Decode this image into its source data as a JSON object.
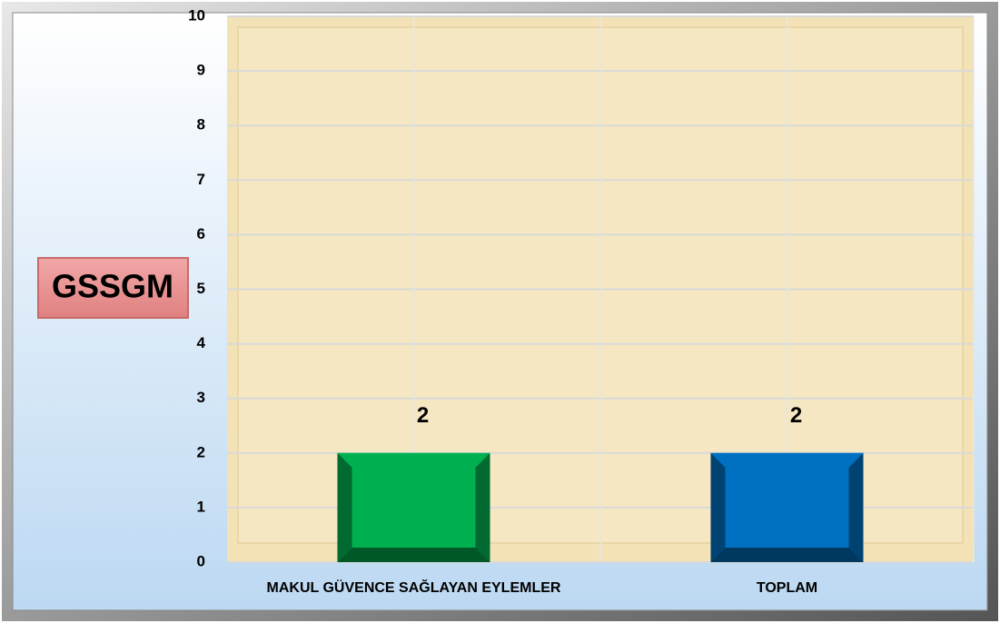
{
  "chart_data": {
    "type": "bar",
    "title": "GSSGM",
    "categories": [
      "MAKUL GÜVENCE SAĞLAYAN EYLEMLER",
      "TOPLAM"
    ],
    "values": [
      2,
      2
    ],
    "colors": [
      "#00b050",
      "#0070c0"
    ],
    "ylim": [
      0,
      10
    ],
    "yticks": [
      0,
      1,
      2,
      3,
      4,
      5,
      6,
      7,
      8,
      9,
      10
    ],
    "grid": true
  }
}
